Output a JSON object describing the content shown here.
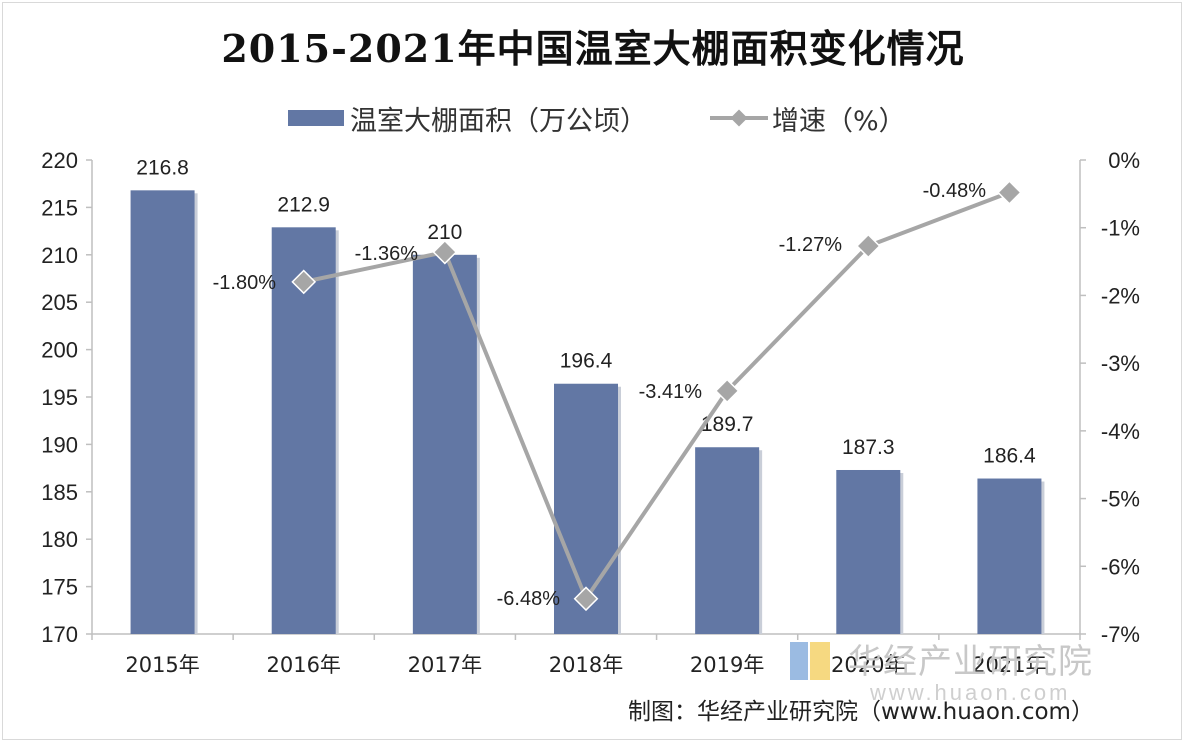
{
  "chart_data": {
    "type": "bar",
    "title": "2015-2021年中国温室大棚面积变化情况",
    "categories": [
      "2015年",
      "2016年",
      "2017年",
      "2018年",
      "2019年",
      "2020年",
      "2021年"
    ],
    "series": [
      {
        "name": "温室大棚面积（万公顷）",
        "type": "bar",
        "axis": "left",
        "values": [
          216.8,
          212.9,
          210,
          196.4,
          189.7,
          187.3,
          186.4
        ],
        "labels": [
          "216.8",
          "212.9",
          "210",
          "196.4",
          "189.7",
          "187.3",
          "186.4"
        ],
        "color": "#6277a4"
      },
      {
        "name": "增速（%）",
        "type": "line",
        "axis": "right",
        "values": [
          null,
          -1.8,
          -1.36,
          -6.48,
          -3.41,
          -1.27,
          -0.48
        ],
        "labels": [
          "",
          "-1.80%",
          "-1.36%",
          "-6.48%",
          "-3.41%",
          "-1.27%",
          "-0.48%"
        ],
        "color": "#a6a6a6"
      }
    ],
    "y_left": {
      "ylim": [
        170,
        220
      ],
      "ticks": [
        "220",
        "215",
        "210",
        "205",
        "200",
        "195",
        "190",
        "185",
        "180",
        "175",
        "170"
      ]
    },
    "y_right": {
      "ylim": [
        -7,
        0
      ],
      "ticks": [
        "0%",
        "-1%",
        "-2%",
        "-3%",
        "-4%",
        "-5%",
        "-6%",
        "-7%"
      ]
    },
    "legend": "top-center",
    "grid": false
  },
  "source": "制图：华经产业研究院（www.huaon.com）",
  "watermark": {
    "text": "华经产业研究院",
    "url": "www.huaon.com"
  }
}
